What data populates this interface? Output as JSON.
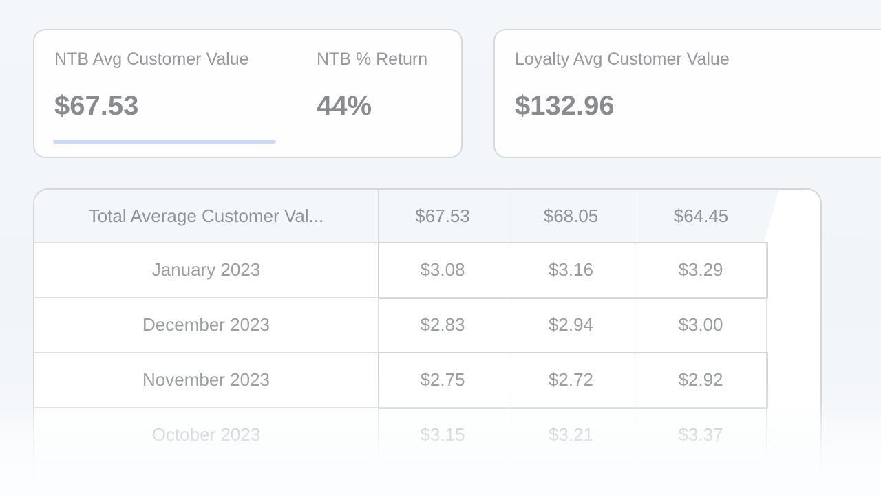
{
  "cards": {
    "ntb": {
      "label": "NTB Avg Customer Value",
      "value": "$67.53",
      "return_label": "NTB % Return",
      "return_value": "44%"
    },
    "loyalty": {
      "label": "Loyalty Avg Customer Value",
      "value": "$132.96"
    }
  },
  "table": {
    "header": {
      "label": "Total Average Customer Val...",
      "values": [
        "$67.53",
        "$68.05",
        "$64.45"
      ]
    },
    "rows": [
      {
        "label": "January 2023",
        "values": [
          "$3.08",
          "$3.16",
          "$3.29"
        ],
        "highlighted": true
      },
      {
        "label": "December 2023",
        "values": [
          "$2.83",
          "$2.94",
          "$3.00"
        ],
        "highlighted": false
      },
      {
        "label": "November 2023",
        "values": [
          "$2.75",
          "$2.72",
          "$2.92"
        ],
        "highlighted": true
      },
      {
        "label": "October 2023",
        "values": [
          "$3.15",
          "$3.21",
          "$3.37"
        ],
        "highlighted": false
      }
    ]
  },
  "colors": {
    "page_background": "#f2f6f9",
    "card_background": "#fefefe",
    "card_border": "#d8d9db",
    "table_header_background": "#f4f7fa",
    "grid_line": "#dcdee2",
    "label_text": "#96989d",
    "value_text": "#8a8b8e",
    "table_text": "#9a9da3",
    "accent_underline": "#cdd9f2",
    "highlight_box_border": "#d2d4d8"
  }
}
